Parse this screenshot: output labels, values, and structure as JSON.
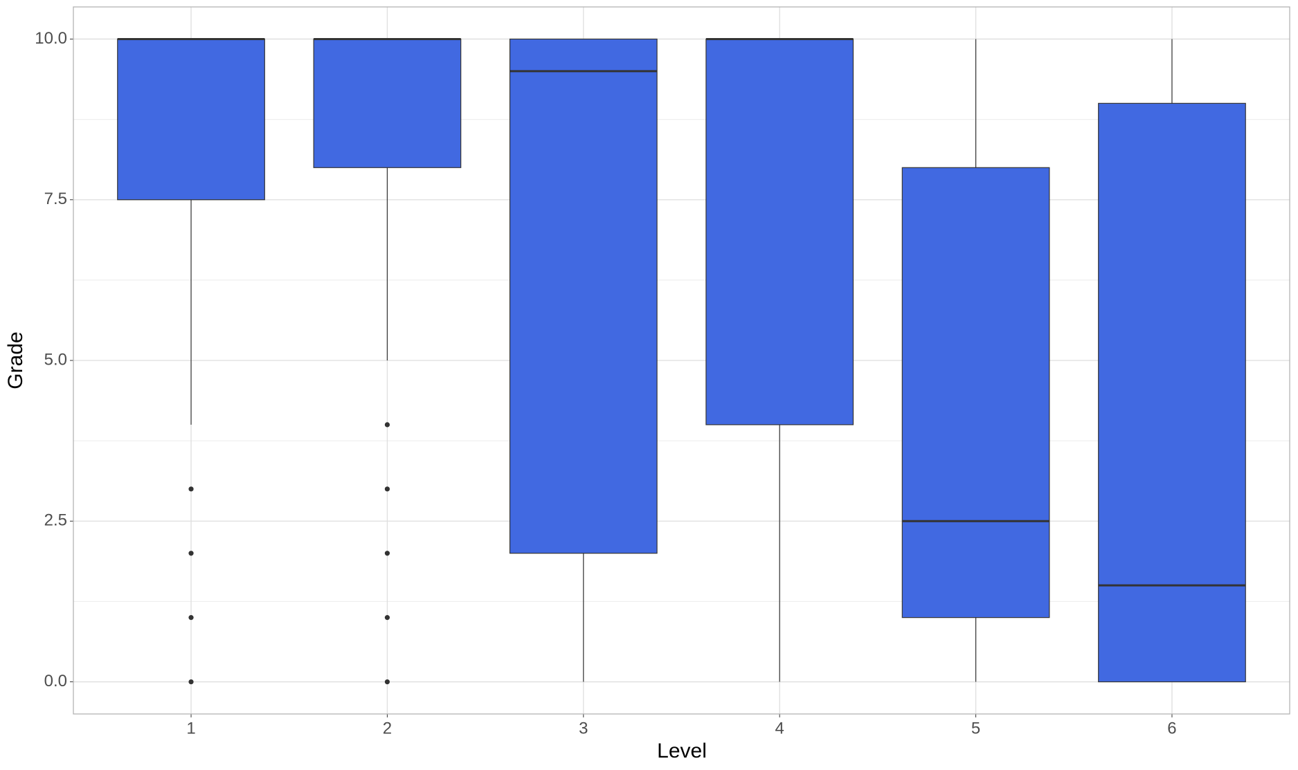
{
  "chart_data": {
    "type": "box",
    "x_label": "Level",
    "y_label": "Grade",
    "categories": [
      "1",
      "2",
      "3",
      "4",
      "5",
      "6"
    ],
    "boxes": [
      {
        "whisker_low": 4,
        "q1": 7.5,
        "median": 10,
        "q3": 10,
        "whisker_high": 10,
        "outliers": [
          3,
          2,
          1,
          0
        ]
      },
      {
        "whisker_low": 5,
        "q1": 8,
        "median": 10,
        "q3": 10,
        "whisker_high": 10,
        "outliers": [
          4,
          3,
          2,
          1,
          0
        ]
      },
      {
        "whisker_low": 0,
        "q1": 2,
        "median": 9.5,
        "q3": 10,
        "whisker_high": 10,
        "outliers": []
      },
      {
        "whisker_low": 0,
        "q1": 4,
        "median": 10,
        "q3": 10,
        "whisker_high": 10,
        "outliers": []
      },
      {
        "whisker_low": 0,
        "q1": 1,
        "median": 2.5,
        "q3": 8,
        "whisker_high": 10,
        "outliers": []
      },
      {
        "whisker_low": 0,
        "q1": 0,
        "median": 1.5,
        "q3": 9,
        "whisker_high": 10,
        "outliers": []
      }
    ],
    "color": "#4169e1",
    "xlim": [
      0.4,
      6.6
    ],
    "ylim": [
      -0.5,
      10.5
    ],
    "yticks": [
      {
        "value": 0,
        "label": "0.0"
      },
      2.5,
      {
        "value": 5,
        "label": "5.0"
      },
      7.5,
      {
        "value": 10,
        "label": "10.0"
      }
    ],
    "grid": true
  }
}
